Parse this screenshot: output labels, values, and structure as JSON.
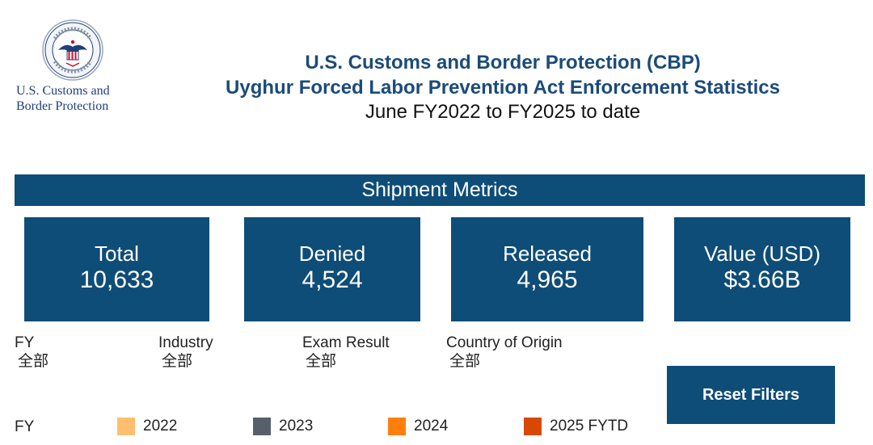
{
  "logo": {
    "line1": "U.S. Customs and",
    "line2": "Border Protection",
    "seal_icon": "cbp-seal-icon"
  },
  "header": {
    "title_line1": "U.S. Customs and Border Protection (CBP)",
    "title_line2": "Uyghur Forced Labor Prevention Act Enforcement Statistics",
    "subtitle": "June FY2022 to FY2025 to date"
  },
  "section": {
    "title": "Shipment Metrics"
  },
  "metrics": [
    {
      "label": "Total",
      "value": "10,633"
    },
    {
      "label": "Denied",
      "value": "4,524"
    },
    {
      "label": "Released",
      "value": "4,965"
    },
    {
      "label": "Value (USD)",
      "value": "$3.66B"
    }
  ],
  "filters": [
    {
      "label": "FY",
      "value": "全部"
    },
    {
      "label": "Industry",
      "value": "全部"
    },
    {
      "label": "Exam Result",
      "value": "全部"
    },
    {
      "label": "Country of Origin",
      "value": "全部"
    }
  ],
  "reset_button": {
    "label": "Reset Filters"
  },
  "legend": {
    "title": "FY",
    "items": [
      {
        "label": "2022",
        "color": "#fdbf6f"
      },
      {
        "label": "2023",
        "color": "#56606b"
      },
      {
        "label": "2024",
        "color": "#ff7f0e"
      },
      {
        "label": "2025 FYTD",
        "color": "#d94801"
      }
    ]
  },
  "colors": {
    "brand_blue": "#0e4d77",
    "title_blue": "#1b4b7a",
    "logo_text": "#1f3f7a"
  }
}
